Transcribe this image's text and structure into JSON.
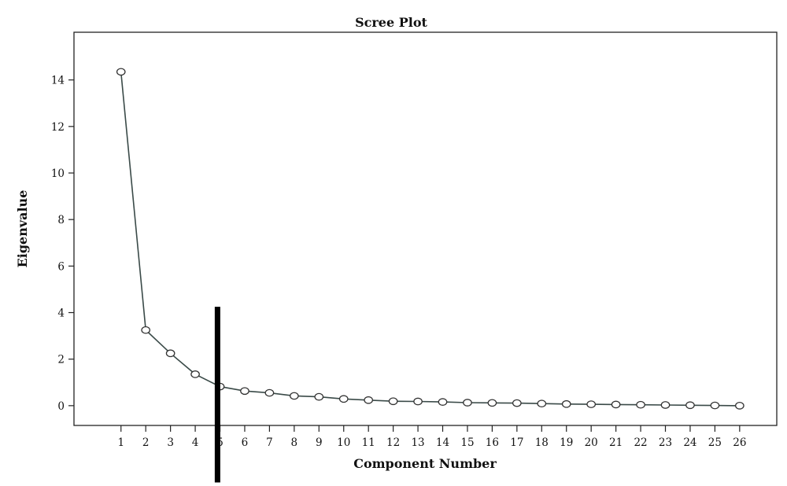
{
  "chart_data": {
    "type": "line",
    "title": "Scree Plot",
    "xlabel": "Component Number",
    "ylabel": "Eigenvalue",
    "x": [
      1,
      2,
      3,
      4,
      5,
      6,
      7,
      8,
      9,
      10,
      11,
      12,
      13,
      14,
      15,
      16,
      17,
      18,
      19,
      20,
      21,
      22,
      23,
      24,
      25,
      26
    ],
    "series": [
      {
        "values": [
          14.35,
          3.25,
          2.25,
          1.35,
          0.82,
          0.63,
          0.55,
          0.42,
          0.38,
          0.29,
          0.24,
          0.19,
          0.18,
          0.16,
          0.13,
          0.12,
          0.11,
          0.09,
          0.07,
          0.06,
          0.05,
          0.04,
          0.03,
          0.02,
          0.01,
          0.0
        ]
      }
    ],
    "xticks": [
      "1",
      "2",
      "3",
      "4",
      "5",
      "6",
      "7",
      "8",
      "9",
      "10",
      "11",
      "12",
      "13",
      "14",
      "15",
      "16",
      "17",
      "18",
      "19",
      "20",
      "21",
      "22",
      "23",
      "24",
      "25",
      "26"
    ],
    "yticks": [
      0,
      2,
      4,
      6,
      8,
      10,
      12,
      14
    ],
    "ylim": [
      -0.85,
      16.05
    ],
    "xlim": [
      -0.9,
      27.5
    ],
    "grid": false,
    "annotations": [
      {
        "type": "vertical-bar",
        "x": 4.9,
        "y_top": 4.25,
        "y_bottom": -3.3,
        "color": "#000000"
      }
    ],
    "colors": {
      "line": "#3a4a48",
      "marker": "#333333",
      "frame": "#222222"
    }
  }
}
